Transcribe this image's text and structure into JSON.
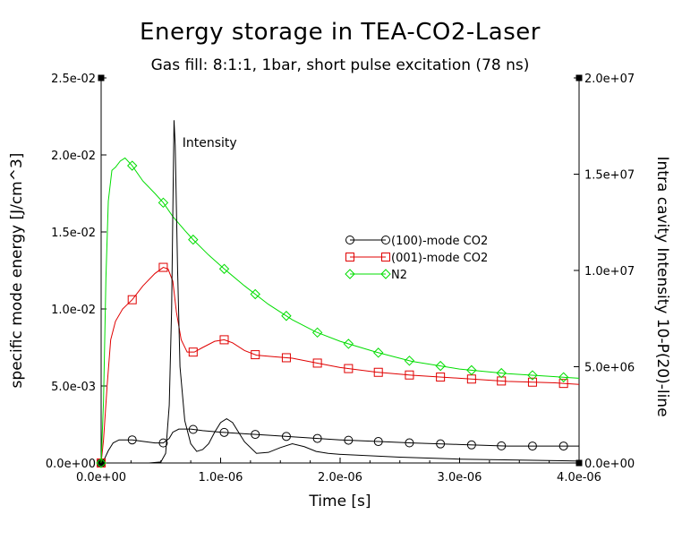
{
  "chart_data": {
    "type": "line",
    "title": "Energy storage in TEA-CO2-Laser",
    "subtitle": "Gas fill: 8:1:1, 1bar, short pulse excitation (78 ns)",
    "xlabel": "Time [s]",
    "ylabel": "specific mode energy [J/cm^3]",
    "y2label": "Intra cavity Intensity 10-P(20)-line",
    "xlim": [
      0,
      4e-06
    ],
    "ylim": [
      0,
      0.025
    ],
    "y2lim": [
      0,
      20000000.0
    ],
    "x_ticks": [
      0,
      1e-06,
      2e-06,
      3e-06,
      4e-06
    ],
    "x_tick_labels": [
      "0.0e+00",
      "1.0e-06",
      "2.0e-06",
      "3.0e-06",
      "4.0e-06"
    ],
    "y_ticks": [
      0,
      0.005,
      0.01,
      0.015,
      0.02,
      0.025
    ],
    "y_tick_labels": [
      "0.0e+00",
      "5.0e-03",
      "1.0e-02",
      "1.5e-02",
      "2.0e-02",
      "2.5e-02"
    ],
    "y2_ticks": [
      0,
      5000000.0,
      10000000.0,
      15000000.0,
      20000000.0
    ],
    "y2_tick_labels": [
      "0.0e+00",
      "5.0e+06",
      "1.0e+07",
      "1.5e+07",
      "2.0e+07"
    ],
    "legend_position": "center-right",
    "grid": false,
    "annotations": [
      {
        "text": "Intensity",
        "x": 6.8e-07,
        "y": 0.0208
      }
    ],
    "series": [
      {
        "name": "(100)-mode CO2",
        "color": "#000000",
        "marker": "circle",
        "axis": "left",
        "x": [
          0,
          3e-08,
          6e-08,
          1e-07,
          1.5e-07,
          2e-07,
          2.6e-07,
          3.5e-07,
          4.5e-07,
          5.2e-07,
          5.7e-07,
          6e-07,
          6.5e-07,
          7.5e-07,
          8.5e-07,
          1e-06,
          1.2e-06,
          1.4e-06,
          1.6e-06,
          1.8e-06,
          2e-06,
          2.3e-06,
          2.6e-06,
          3e-06,
          3.4e-06,
          3.8e-06,
          4e-06
        ],
        "y": [
          0,
          0.0003,
          0.0008,
          0.0013,
          0.0015,
          0.0015,
          0.0015,
          0.0014,
          0.0013,
          0.0013,
          0.0016,
          0.002,
          0.0022,
          0.0022,
          0.0021,
          0.002,
          0.0019,
          0.0018,
          0.0017,
          0.0016,
          0.0015,
          0.0014,
          0.0013,
          0.0012,
          0.0011,
          0.0011,
          0.0011
        ],
        "markers_x": [
          0,
          2.6e-07,
          5.2e-07,
          7.7e-07,
          1.03e-06,
          1.29e-06,
          1.55e-06,
          1.81e-06,
          2.07e-06,
          2.32e-06,
          2.58e-06,
          2.84e-06,
          3.1e-06,
          3.35e-06,
          3.61e-06,
          3.87e-06
        ]
      },
      {
        "name": "(001)-mode CO2",
        "color": "#e00000",
        "marker": "square",
        "axis": "left",
        "x": [
          0,
          2e-08,
          5e-08,
          8e-08,
          1.2e-07,
          1.8e-07,
          2.6e-07,
          3.5e-07,
          4.5e-07,
          5.2e-07,
          5.6e-07,
          6e-07,
          6.3e-07,
          6.7e-07,
          7.2e-07,
          7.8e-07,
          8.5e-07,
          9.5e-07,
          1.03e-06,
          1.1e-06,
          1.2e-06,
          1.3e-06,
          1.45e-06,
          1.6e-06,
          1.8e-06,
          2e-06,
          2.3e-06,
          2.6e-06,
          3e-06,
          3.4e-06,
          3.8e-06,
          4e-06
        ],
        "y": [
          0,
          0.0015,
          0.005,
          0.008,
          0.0092,
          0.01,
          0.0106,
          0.0115,
          0.0123,
          0.0127,
          0.0126,
          0.0118,
          0.0098,
          0.008,
          0.0072,
          0.0072,
          0.0075,
          0.0079,
          0.008,
          0.0078,
          0.0073,
          0.007,
          0.0069,
          0.0068,
          0.0065,
          0.0062,
          0.0059,
          0.0057,
          0.0055,
          0.0053,
          0.0052,
          0.0051
        ],
        "markers_x": [
          0,
          2.6e-07,
          5.2e-07,
          7.7e-07,
          1.03e-06,
          1.29e-06,
          1.55e-06,
          1.81e-06,
          2.07e-06,
          2.32e-06,
          2.58e-06,
          2.84e-06,
          3.1e-06,
          3.35e-06,
          3.61e-06,
          3.87e-06
        ]
      },
      {
        "name": "N2",
        "color": "#00dd00",
        "marker": "diamond",
        "axis": "left",
        "x": [
          0,
          2e-08,
          4e-08,
          6e-08,
          9e-08,
          1.2e-07,
          1.6e-07,
          2e-07,
          2.6e-07,
          3.5e-07,
          4.5e-07,
          5.2e-07,
          6e-07,
          7e-07,
          7.7e-07,
          9e-07,
          1.03e-06,
          1.2e-06,
          1.4e-06,
          1.6e-06,
          1.8e-06,
          2e-06,
          2.3e-06,
          2.6e-06,
          3e-06,
          3.4e-06,
          3.8e-06,
          4e-06
        ],
        "y": [
          0,
          0.004,
          0.012,
          0.017,
          0.019,
          0.0192,
          0.0196,
          0.0198,
          0.0193,
          0.0183,
          0.0175,
          0.0169,
          0.016,
          0.0151,
          0.0145,
          0.0135,
          0.0126,
          0.0115,
          0.0103,
          0.0093,
          0.0085,
          0.0079,
          0.0072,
          0.0066,
          0.0061,
          0.0058,
          0.0056,
          0.0055
        ],
        "markers_x": [
          0,
          2.6e-07,
          5.2e-07,
          7.7e-07,
          1.03e-06,
          1.29e-06,
          1.55e-06,
          1.81e-06,
          2.07e-06,
          2.32e-06,
          2.58e-06,
          2.84e-06,
          3.1e-06,
          3.35e-06,
          3.61e-06,
          3.87e-06
        ]
      },
      {
        "name": "Intensity",
        "color": "#000000",
        "marker": "none",
        "axis": "right",
        "x": [
          0,
          5e-08,
          1e-07,
          2e-07,
          3e-07,
          4e-07,
          5e-07,
          5.4e-07,
          5.7e-07,
          5.9e-07,
          6e-07,
          6.1e-07,
          6.2e-07,
          6.4e-07,
          6.6e-07,
          7e-07,
          7.5e-07,
          8e-07,
          8.5e-07,
          9e-07,
          9.5e-07,
          1e-06,
          1.05e-06,
          1.1e-06,
          1.15e-06,
          1.2e-06,
          1.3e-06,
          1.4e-06,
          1.5e-06,
          1.6e-06,
          1.7e-06,
          1.8e-06,
          1.9e-06,
          2e-06,
          2.5e-06,
          3e-06,
          3.5e-06,
          4e-06
        ],
        "y": [
          0,
          0,
          0,
          0,
          0,
          0,
          50000.0,
          500000.0,
          3000000.0,
          8000000.0,
          13000000.0,
          17800000.0,
          16500000.0,
          10000000.0,
          5000000.0,
          2200000.0,
          1000000.0,
          600000.0,
          700000.0,
          1000000.0,
          1600000.0,
          2100000.0,
          2300000.0,
          2100000.0,
          1600000.0,
          1100000.0,
          500000.0,
          550000.0,
          800000.0,
          1000000.0,
          850000.0,
          600000.0,
          500000.0,
          450000.0,
          300000.0,
          200000.0,
          150000.0,
          100000.0
        ]
      }
    ]
  }
}
